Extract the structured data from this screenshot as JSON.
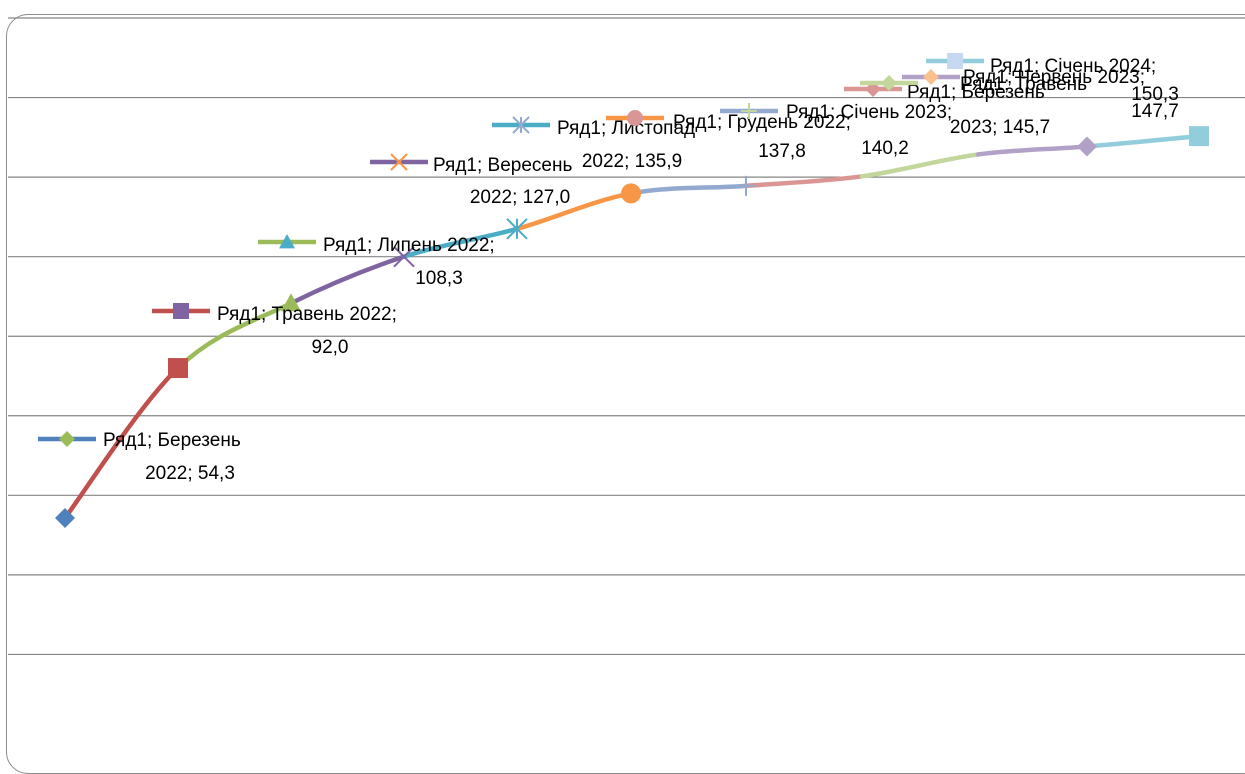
{
  "chart_data": {
    "type": "line",
    "title": "",
    "xlabel": "",
    "ylabel": "",
    "grid": true,
    "legend": "none",
    "ylim": [
      0,
      180
    ],
    "series": [
      {
        "name": "Ряд1",
        "points": [
          {
            "category": "Березень 2022",
            "value": 54.3,
            "label": [
              "Ряд1; Березень",
              "2022; 54,3"
            ],
            "color": "#4f81bd",
            "marker": "diamond",
            "marker_color": "#4f81bd",
            "legend_marker_color": "#9bbb59"
          },
          {
            "category": "Травень 2022",
            "value": 92.0,
            "label": [
              "Ряд1; Травень 2022;",
              "92,0"
            ],
            "color": "#c0504d",
            "marker": "square",
            "marker_color": "#c0504d",
            "legend_marker_color": "#8064a2"
          },
          {
            "category": "Липень 2022",
            "value": 108.3,
            "label": [
              "Ряд1; Липень 2022;",
              "108,3"
            ],
            "color": "#9bbb59",
            "marker": "triangle",
            "marker_color": "#9bbb59",
            "legend_marker_color": "#4bacc6"
          },
          {
            "category": "Вересень 2022",
            "value": 120.0,
            "label": [
              "Ряд1; Вересень"
            ],
            "color": "#8064a2",
            "marker": "x",
            "marker_color": "#8064a2",
            "legend_marker_color": "#f79646"
          },
          {
            "category": "Листопад 2022",
            "value": 127.0,
            "label": [
              "Ряд1; Листопад",
              "2022; 127,0"
            ],
            "color": "#4bacc6",
            "marker": "star",
            "marker_color": "#4bacc6",
            "legend_marker_color": "#93a9cf"
          },
          {
            "category": "Грудень 2022",
            "value": 135.9,
            "label": [
              "Ряд1; Грудень 2022;",
              "2022; 135,9"
            ],
            "color": "#f79646",
            "marker": "circle",
            "marker_color": "#f79646",
            "legend_marker_color": "#d99694"
          },
          {
            "category": "Січень 2023",
            "value": 137.8,
            "label": [
              "Ряд1; Січень 2023;",
              "137,8"
            ],
            "color": "#93a9cf",
            "marker": "plus",
            "marker_color": "#93a9cf",
            "legend_marker_color": "#c3d69b"
          },
          {
            "category": "Березень 2023",
            "value": 140.2,
            "label": [
              "Ряд1; Березень",
              "140,2"
            ],
            "color": "#d99694",
            "marker": "none",
            "marker_color": "#d99694",
            "legend_marker_color": "#d99694"
          },
          {
            "category": "Травень 2023",
            "value": 145.7,
            "label": [
              "Ряд1; Травень",
              "2023; 145,7"
            ],
            "color": "#c3d69b",
            "marker": "none",
            "marker_color": "#c3d69b",
            "legend_marker_color": "#c3d69b"
          },
          {
            "category": "Червень 2023",
            "value": 147.7,
            "label": [
              "Ряд1; Червень 2023;",
              "147,7"
            ],
            "color": "#b2a1c7",
            "marker": "diamond",
            "marker_color": "#b2a1c7",
            "legend_marker_color": "#fac090"
          },
          {
            "category": "Січень 2024",
            "value": 150.3,
            "label": [
              "Ряд1; Січень 2024;",
              "150,3"
            ],
            "color": "#92cddc",
            "marker": "square",
            "marker_color": "#92cddc",
            "legend_marker_color": "#c6d9f1"
          }
        ]
      }
    ]
  }
}
